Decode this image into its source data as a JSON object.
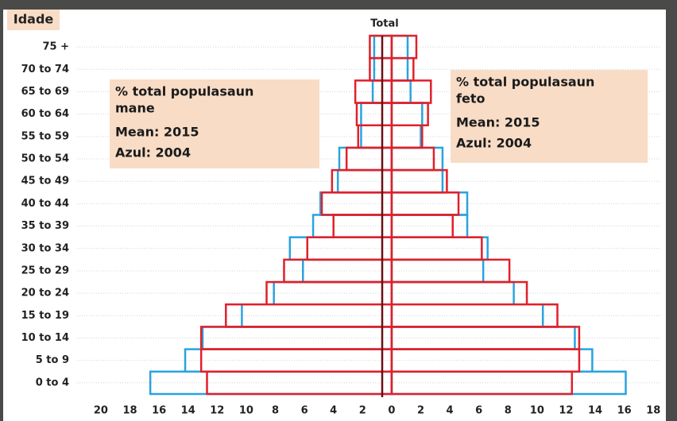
{
  "chart_data": {
    "type": "population-pyramid",
    "title": "Total",
    "y_label": "Idade",
    "categories": [
      "75 +",
      "70 to 74",
      "65 to 69",
      "60 to 64",
      "55 to 59",
      "50 to 54",
      "45 to 49",
      "40 to 44",
      "35 to 39",
      "30 to 34",
      "25 to 29",
      "20 to 24",
      "15 to 19",
      "10 to 14",
      "5 to 9",
      "0 to 4"
    ],
    "series": [
      {
        "color": "#29a3e0",
        "values": [
          -1.2,
          -1.2,
          -1.3,
          -2.1,
          -2.1,
          -3.6,
          -3.7,
          -4.9,
          -5.4,
          -7.0,
          -6.1,
          -8.1,
          -10.3,
          -13.0,
          -14.2,
          -16.6
        ]
      },
      {
        "color": "#29a3e0",
        "values": [
          1.1,
          1.1,
          1.3,
          2.1,
          2.0,
          3.5,
          3.5,
          5.2,
          5.2,
          6.6,
          6.3,
          8.4,
          10.4,
          12.6,
          13.8,
          16.1
        ]
      },
      {
        "color": "#e0202a",
        "values": [
          -1.5,
          -1.5,
          -2.5,
          -2.4,
          -2.3,
          -3.1,
          -4.1,
          -4.8,
          -4.0,
          -5.8,
          -7.4,
          -8.6,
          -11.4,
          -13.1,
          -13.1,
          -12.7
        ]
      },
      {
        "color": "#e0202a",
        "values": [
          1.7,
          1.5,
          2.7,
          2.5,
          2.1,
          2.9,
          3.8,
          4.6,
          4.2,
          6.2,
          8.1,
          9.3,
          11.4,
          12.9,
          12.9,
          12.4
        ]
      }
    ],
    "xlim": [
      -20.8,
      18.3
    ],
    "xticks": [
      {
        "value": -20,
        "label": "20"
      },
      {
        "value": -18,
        "label": "18"
      },
      {
        "value": -16,
        "label": "16"
      },
      {
        "value": -14,
        "label": "14"
      },
      {
        "value": -12,
        "label": "12"
      },
      {
        "value": -10,
        "label": "10"
      },
      {
        "value": -8,
        "label": "8"
      },
      {
        "value": -6,
        "label": "6"
      },
      {
        "value": -4,
        "label": "4"
      },
      {
        "value": -2,
        "label": "2"
      },
      0,
      2,
      4,
      6,
      8,
      10,
      12,
      14,
      16,
      18
    ],
    "annotations": [
      {
        "lines": [
          "% total populasaun",
          "mane",
          "Mean: 2015",
          "Azul: 2004"
        ]
      },
      {
        "lines": [
          "% total populasaun",
          "feto",
          "Mean: 2015",
          "Azul: 2004"
        ]
      }
    ]
  }
}
